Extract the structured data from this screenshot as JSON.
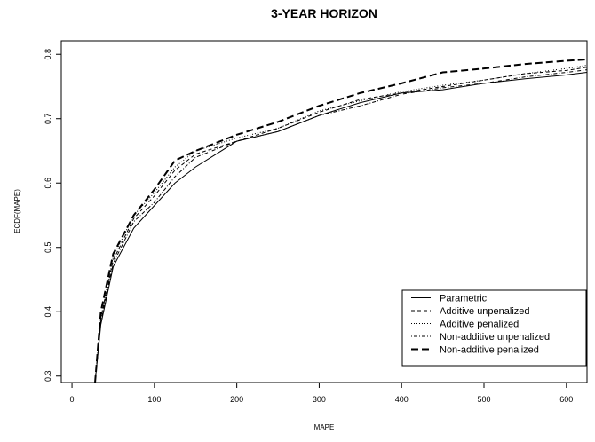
{
  "chart_data": {
    "type": "line",
    "title": "3-YEAR HORIZON",
    "x_label": "MAPE",
    "y_label": "ECDF(MAPE)",
    "x": [
      28,
      35,
      50,
      75,
      100,
      125,
      150,
      200,
      250,
      300,
      350,
      400,
      450,
      500,
      550,
      600,
      625
    ],
    "series": [
      {
        "name": "Parametric",
        "color": "#000000",
        "linestyle": "solid",
        "linewidth": 1,
        "values": [
          0.29,
          0.38,
          0.47,
          0.53,
          0.565,
          0.6,
          0.625,
          0.665,
          0.68,
          0.705,
          0.725,
          0.74,
          0.745,
          0.755,
          0.762,
          0.768,
          0.772
        ]
      },
      {
        "name": "Additive unpenalized",
        "color": "#000000",
        "linestyle": "dashed",
        "linewidth": 1,
        "values": [
          0.29,
          0.39,
          0.48,
          0.545,
          0.58,
          0.62,
          0.645,
          0.665,
          0.685,
          0.71,
          0.73,
          0.74,
          0.75,
          0.76,
          0.77,
          0.775,
          0.78
        ]
      },
      {
        "name": "Additive penalized",
        "color": "#000000",
        "linestyle": "dotted",
        "linewidth": 1,
        "values": [
          0.29,
          0.39,
          0.485,
          0.55,
          0.585,
          0.625,
          0.65,
          0.67,
          0.685,
          0.712,
          0.728,
          0.742,
          0.752,
          0.76,
          0.77,
          0.778,
          0.783
        ]
      },
      {
        "name": "Non-additive unpenalized",
        "color": "#000000",
        "linestyle": "dotdash",
        "linewidth": 1,
        "values": [
          0.29,
          0.385,
          0.475,
          0.54,
          0.57,
          0.61,
          0.64,
          0.665,
          0.68,
          0.705,
          0.72,
          0.738,
          0.748,
          0.755,
          0.765,
          0.772,
          0.776
        ]
      },
      {
        "name": "Non-additive penalized",
        "color": "#000000",
        "linestyle": "longdash",
        "linewidth": 2,
        "values": [
          0.29,
          0.4,
          0.49,
          0.55,
          0.59,
          0.635,
          0.65,
          0.675,
          0.695,
          0.72,
          0.74,
          0.755,
          0.772,
          0.778,
          0.785,
          0.79,
          0.792
        ]
      }
    ],
    "xlim": [
      -13,
      625
    ],
    "ylim": [
      0.29,
      0.821
    ],
    "xticks": [
      0,
      100,
      200,
      300,
      400,
      500,
      600
    ],
    "yticks": [
      0.3,
      0.4,
      0.5,
      0.6,
      0.7,
      0.8
    ],
    "legend": "bottom-right"
  }
}
